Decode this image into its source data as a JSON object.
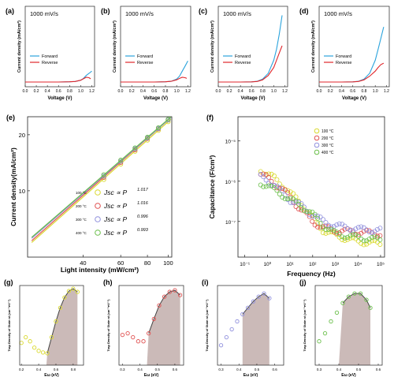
{
  "colors": {
    "forward": "#2aa3dc",
    "reverse": "#e0262b",
    "t100": "#d9d92e",
    "t200": "#e05050",
    "t300": "#9090dd",
    "t400": "#6abf4a",
    "fill": "#c2aeab",
    "fit": "#444444",
    "axis": "#222222"
  },
  "jv": {
    "subtitle": "1000 mV/s",
    "xlabel": "Voltage (V)",
    "ylabel": "Current density (mA/cm²)",
    "legend": [
      "Forward",
      "Reverse"
    ],
    "xticks": [
      "0.0",
      "0.2",
      "0.4",
      "0.6",
      "0.8",
      "1.0",
      "1.2"
    ],
    "panels": [
      {
        "label": "(a)"
      },
      {
        "label": "(b)"
      },
      {
        "label": "(c)"
      },
      {
        "label": "(d)"
      }
    ]
  },
  "panel_e": {
    "label": "(e)",
    "xlabel": "Light intensity (mW/cm²)",
    "ylabel": "Current density(mA/cm²)",
    "xticks": [
      "40",
      "60",
      "80",
      "100"
    ],
    "yticks": [
      "20",
      "10"
    ],
    "legend": [
      {
        "temp": "100 °C",
        "expr": "Jsc ∝ P",
        "exp": "1.017"
      },
      {
        "temp": "200 °C",
        "expr": "Jsc ∝ P",
        "exp": "1.016"
      },
      {
        "temp": "300 °C",
        "expr": "Jsc ∝ P",
        "exp": "0.996"
      },
      {
        "temp": "400 °C",
        "expr": "Jsc ∝ P",
        "exp": "0.993"
      }
    ]
  },
  "panel_f": {
    "label": "(f)",
    "xlabel": "Frequency (Hz)",
    "ylabel": "Capacitance (F/cm²)",
    "xticks": [
      "10⁻¹",
      "10⁰",
      "10¹",
      "10²",
      "10³",
      "10⁴",
      "10⁵"
    ],
    "yticks": [
      "10⁻⁵",
      "10⁻⁶",
      "10⁻⁷"
    ],
    "legend": [
      "100 °C",
      "200 °C",
      "300 °C",
      "400 °C"
    ]
  },
  "tdos": {
    "xlabel": "Eω (eV)",
    "ylabel": "Trap Density of State nt (cm⁻³eV⁻¹)",
    "panels": [
      {
        "label": "(g)",
        "xticks": [
          "0.2",
          "0.4",
          "0.6",
          "0.8"
        ]
      },
      {
        "label": "(h)",
        "xticks": [
          "0.3",
          "0.4",
          "0.5",
          "0.6"
        ]
      },
      {
        "label": "(i)",
        "xticks": [
          "0.3",
          "0.4",
          "0.5",
          "0.6"
        ]
      },
      {
        "label": "(j)",
        "xticks": [
          "0.3",
          "0.4",
          "0.5",
          "0.6"
        ]
      }
    ]
  },
  "chart_data": [
    {
      "type": "line",
      "panel": "(a)",
      "title": "1000 mV/s",
      "xlabel": "Voltage (V)",
      "ylabel": "Current density (mA/cm²)",
      "xlim": [
        0,
        1.25
      ],
      "ylim": [
        0,
        1
      ],
      "series": [
        {
          "name": "Forward",
          "x": [
            0,
            0.2,
            0.4,
            0.6,
            0.8,
            0.9,
            1.0,
            1.05,
            1.1,
            1.15,
            1.2
          ],
          "y": [
            0,
            0,
            0,
            0,
            0.003,
            0.008,
            0.025,
            0.05,
            0.09,
            0.12,
            0.15
          ]
        },
        {
          "name": "Reverse",
          "x": [
            0,
            0.2,
            0.4,
            0.6,
            0.8,
            0.9,
            1.0,
            1.05,
            1.1,
            1.15,
            1.18
          ],
          "y": [
            0,
            0,
            0,
            0,
            0.003,
            0.008,
            0.025,
            0.045,
            0.065,
            0.06,
            0.045
          ]
        }
      ]
    },
    {
      "type": "line",
      "panel": "(b)",
      "title": "1000 mV/s",
      "xlabel": "Voltage (V)",
      "ylabel": "Current density (mA/cm²)",
      "xlim": [
        0,
        1.25
      ],
      "ylim": [
        0,
        1
      ],
      "series": [
        {
          "name": "Forward",
          "x": [
            0,
            0.2,
            0.4,
            0.6,
            0.8,
            0.9,
            1.0,
            1.05,
            1.1,
            1.15,
            1.2
          ],
          "y": [
            0,
            0,
            0,
            0,
            0.003,
            0.01,
            0.04,
            0.08,
            0.15,
            0.22,
            0.29
          ]
        },
        {
          "name": "Reverse",
          "x": [
            0,
            0.2,
            0.4,
            0.6,
            0.8,
            0.9,
            1.0,
            1.05,
            1.1,
            1.15,
            1.18
          ],
          "y": [
            0,
            0,
            0,
            0,
            0.003,
            0.01,
            0.03,
            0.05,
            0.065,
            0.06,
            0.05
          ]
        }
      ]
    },
    {
      "type": "line",
      "panel": "(c)",
      "title": "1000 mV/s",
      "xlabel": "Voltage (V)",
      "ylabel": "Current density (mA/cm²)",
      "xlim": [
        0,
        1.25
      ],
      "ylim": [
        0,
        1
      ],
      "series": [
        {
          "name": "Forward",
          "x": [
            0,
            0.2,
            0.4,
            0.6,
            0.7,
            0.8,
            0.9,
            1.0,
            1.05,
            1.1,
            1.15
          ],
          "y": [
            0,
            0,
            0,
            0.002,
            0.01,
            0.04,
            0.12,
            0.3,
            0.45,
            0.66,
            0.92
          ]
        },
        {
          "name": "Reverse",
          "x": [
            0,
            0.2,
            0.4,
            0.6,
            0.7,
            0.8,
            0.9,
            1.0,
            1.05,
            1.1,
            1.15
          ],
          "y": [
            0,
            0,
            0,
            0.002,
            0.008,
            0.03,
            0.09,
            0.2,
            0.3,
            0.4,
            0.5
          ]
        }
      ]
    },
    {
      "type": "line",
      "panel": "(d)",
      "title": "1000 mV/s",
      "xlabel": "Voltage (V)",
      "ylabel": "Current density (mA/cm²)",
      "xlim": [
        0,
        1.25
      ],
      "ylim": [
        0,
        1
      ],
      "series": [
        {
          "name": "Forward",
          "x": [
            0,
            0.2,
            0.4,
            0.6,
            0.7,
            0.8,
            0.9,
            1.0,
            1.05,
            1.1,
            1.15
          ],
          "y": [
            0,
            0,
            0,
            0.002,
            0.01,
            0.04,
            0.12,
            0.3,
            0.45,
            0.6,
            0.76
          ]
        },
        {
          "name": "Reverse",
          "x": [
            0,
            0.2,
            0.4,
            0.6,
            0.7,
            0.8,
            0.9,
            1.0,
            1.05,
            1.1,
            1.15
          ],
          "y": [
            0,
            0,
            0,
            0.002,
            0.008,
            0.03,
            0.08,
            0.15,
            0.2,
            0.24,
            0.26
          ]
        }
      ]
    },
    {
      "type": "scatter",
      "panel": "(e)",
      "xscale": "log",
      "yscale": "log",
      "xlabel": "Light intensity (mW/cm²)",
      "ylabel": "Current density(mA/cm²)",
      "xlim": [
        22,
        104
      ],
      "ylim": [
        4.4,
        25
      ],
      "series": [
        {
          "name": "100 °C",
          "exponent": 1.017,
          "x": [
            50,
            60,
            70,
            80,
            90,
            100
          ],
          "y": [
            11.5,
            13.9,
            16.3,
            18.7,
            21.1,
            23.5
          ]
        },
        {
          "name": "200 °C",
          "exponent": 1.016,
          "x": [
            50,
            60,
            70,
            80,
            90,
            100
          ],
          "y": [
            11.8,
            14.2,
            16.6,
            19.1,
            21.5,
            24.0
          ]
        },
        {
          "name": "300 °C",
          "exponent": 0.996,
          "x": [
            50,
            60,
            70,
            80,
            90,
            100
          ],
          "y": [
            12.0,
            14.4,
            16.8,
            19.2,
            21.6,
            24.0
          ]
        },
        {
          "name": "400 °C",
          "exponent": 0.993,
          "x": [
            50,
            60,
            70,
            80,
            90,
            100
          ],
          "y": [
            12.2,
            14.6,
            17.0,
            19.4,
            21.8,
            24.2
          ]
        }
      ]
    },
    {
      "type": "scatter",
      "panel": "(f)",
      "xscale": "log",
      "yscale": "log",
      "xlabel": "Frequency (Hz)",
      "ylabel": "Capacitance (F/cm²)",
      "xlim": [
        0.05,
        150000
      ],
      "ylim": [
        1.3e-08,
        4e-05
      ],
      "legend": "top-right",
      "series": [
        {
          "name": "100 °C",
          "x": [
            0.5,
            1,
            2,
            5,
            10,
            30,
            100,
            300,
            1000,
            10000,
            100000
          ],
          "y": [
            2e-06,
            1.5e-06,
            1.2e-06,
            8e-07,
            5e-07,
            3e-07,
            1.2e-07,
            6e-08,
            4.5e-08,
            3.2e-08,
            2.8e-08
          ]
        },
        {
          "name": "200 °C",
          "x": [
            0.5,
            1,
            2,
            5,
            10,
            30,
            100,
            300,
            1000,
            10000,
            100000
          ],
          "y": [
            1.5e-06,
            1.2e-06,
            9e-07,
            6e-07,
            4e-07,
            2e-07,
            1e-07,
            7e-08,
            6e-08,
            5.5e-08,
            5e-08
          ]
        },
        {
          "name": "300 °C",
          "x": [
            0.5,
            1,
            2,
            5,
            10,
            30,
            100,
            300,
            1000,
            10000,
            100000
          ],
          "y": [
            1.3e-06,
            1.1e-06,
            8e-07,
            5e-07,
            3.5e-07,
            2.5e-07,
            1.5e-07,
            1e-07,
            8e-08,
            6.5e-08,
            6e-08
          ]
        },
        {
          "name": "400 °C",
          "x": [
            0.5,
            1,
            2,
            5,
            10,
            30,
            100,
            300,
            1000,
            10000,
            100000
          ],
          "y": [
            9e-07,
            8e-07,
            6e-07,
            4.5e-07,
            3.5e-07,
            2.5e-07,
            1.5e-07,
            8e-08,
            5e-08,
            4e-08,
            3.5e-08
          ]
        }
      ]
    },
    {
      "type": "scatter",
      "panel": "(g)",
      "xlabel": "Eω (eV)",
      "ylabel": "Trap Density of State nt (cm⁻³eV⁻¹)",
      "xlim": [
        0.18,
        0.92
      ],
      "ylim": [
        0,
        1
      ],
      "fill_from": 0.49,
      "series": [
        {
          "name": "100 °C",
          "x": [
            0.2,
            0.25,
            0.3,
            0.35,
            0.4,
            0.45,
            0.5,
            0.55,
            0.6,
            0.65,
            0.7,
            0.75,
            0.8,
            0.85
          ],
          "y": [
            0.28,
            0.35,
            0.3,
            0.22,
            0.18,
            0.16,
            0.15,
            0.35,
            0.55,
            0.72,
            0.85,
            0.93,
            0.96,
            0.92
          ]
        }
      ]
    },
    {
      "type": "scatter",
      "panel": "(h)",
      "xlabel": "Eω (eV)",
      "ylabel": "Trap Density of State nt (cm⁻³eV⁻¹)",
      "xlim": [
        0.28,
        0.65
      ],
      "ylim": [
        0,
        1
      ],
      "fill_from": 0.44,
      "series": [
        {
          "name": "200 °C",
          "x": [
            0.3,
            0.33,
            0.36,
            0.39,
            0.42,
            0.45,
            0.48,
            0.51,
            0.54,
            0.57,
            0.6,
            0.63
          ],
          "y": [
            0.38,
            0.4,
            0.35,
            0.3,
            0.3,
            0.4,
            0.58,
            0.75,
            0.86,
            0.92,
            0.94,
            0.88
          ]
        }
      ]
    },
    {
      "type": "scatter",
      "panel": "(i)",
      "xlabel": "Eω (eV)",
      "ylabel": "Trap Density of State nt (cm⁻³eV⁻¹)",
      "xlim": [
        0.28,
        0.65
      ],
      "ylim": [
        0,
        1
      ],
      "fill_from": 0.42,
      "series": [
        {
          "name": "300 °C",
          "x": [
            0.3,
            0.33,
            0.36,
            0.39,
            0.42,
            0.45,
            0.48,
            0.51,
            0.54,
            0.57
          ],
          "y": [
            0.25,
            0.35,
            0.45,
            0.55,
            0.64,
            0.72,
            0.8,
            0.86,
            0.9,
            0.84
          ]
        }
      ]
    },
    {
      "type": "scatter",
      "panel": "(j)",
      "xlabel": "Eω (eV)",
      "ylabel": "Trap Density of State nt (cm⁻³eV⁻¹)",
      "xlim": [
        0.28,
        0.62
      ],
      "ylim": [
        0,
        1
      ],
      "fill_from": 0.4,
      "series": [
        {
          "name": "400 °C",
          "x": [
            0.3,
            0.33,
            0.36,
            0.39,
            0.42,
            0.45,
            0.48,
            0.51,
            0.54,
            0.56
          ],
          "y": [
            0.3,
            0.4,
            0.55,
            0.66,
            0.78,
            0.86,
            0.9,
            0.9,
            0.82,
            0.72
          ]
        }
      ]
    }
  ]
}
